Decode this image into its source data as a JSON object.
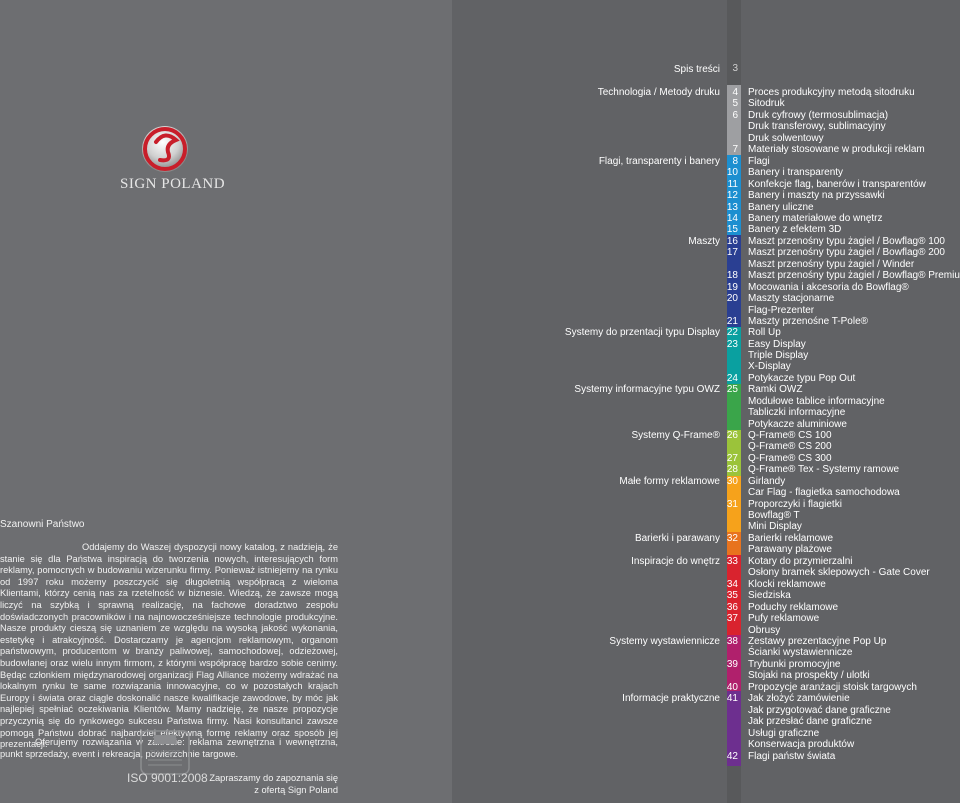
{
  "left": {
    "brand": "SIGN POLAND",
    "greeting": "Szanowni Państwo",
    "paragraph1": "Oddajemy do Waszej dyspozycji nowy katalog, z nadzieją, że stanie się dla Państwa inspiracją do tworzenia nowych, interesujących form reklamy, pomocnych w budowaniu wizerunku firmy. Ponieważ istniejemy na rynku od 1997 roku możemy poszczycić się długoletnią współpracą z wieloma Klientami, którzy cenią nas za rzetelność w biznesie. Wiedzą, że zawsze mogą liczyć na szybką i sprawną realizację, na fachowe doradztwo zespołu doświadczonych pracowników i na najnowocześniejsze technologie produkcyjne. Nasze produkty cieszą się uznaniem ze względu na wysoką jakość wykonania, estetykę i atrakcyjność. Dostarczamy je agencjom reklamowym, organom państwowym, producentom w branży paliwowej, samochodowej, odzieżowej, budowlanej oraz wielu innym firmom, z którymi współpracę bardzo sobie cenimy. Będąc członkiem międzynarodowej organizacji Flag Alliance możemy wdrażać na lokalnym rynku te same rozwiązania innowacyjne, co w pozostałych krajach Europy i świata oraz ciągle doskonalić nasze kwalifikacje zawodowe, by móc jak najlepiej spełniać oczekiwania Klientów. Mamy nadzieję, że nasze propozycje przyczynią się do rynkowego sukcesu Państwa firmy. Nasi konsultanci zawsze pomogą Państwu dobrać najbardziej efektywną formę reklamy oraz sposób jej prezentacji.",
    "paragraph2": "Oferujemy rozwiązania w zakresie: reklama zewnętrzna i wewnętrzna, punkt sprzedaży, event i rekreacja, powierzchnie targowe.",
    "closing1": "Zapraszamy do zapoznania się",
    "closing2": "z ofertą Sign Poland",
    "cert_label": "TÜV CERT",
    "iso": "ISO 9001:2008"
  },
  "toc": {
    "title": "Spis treści",
    "title_num": "3",
    "categories": [
      {
        "label": "Technologia / Metody druku",
        "color": "#9e9fa2"
      },
      {
        "label": "Flagi, transparenty i banery",
        "color": "#1c8fd0"
      },
      {
        "label": "Maszty",
        "color": "#2a3f92"
      },
      {
        "label": "Systemy do przentacji typu Display",
        "color": "#0aa0a0"
      },
      {
        "label": "Systemy informacyjne typu OWZ",
        "color": "#3aa54a"
      },
      {
        "label": "Systemy Q-Frame®",
        "color": "#9bc33a"
      },
      {
        "label": "Małe formy reklamowe",
        "color": "#f6a21b"
      },
      {
        "label": "Barierki i parawany",
        "color": "#e8731e"
      },
      {
        "label": "Inspiracje do wnętrz",
        "color": "#d9232e"
      },
      {
        "label": "Systemy wystawiennicze",
        "color": "#b0206c"
      },
      {
        "label": "Informacje praktyczne",
        "color": "#6d2f8f"
      }
    ],
    "numbers": [
      "4",
      "5",
      "6",
      "7",
      "8",
      "10",
      "11",
      "12",
      "13",
      "14",
      "15",
      "16",
      "17",
      "18",
      "19",
      "20",
      "21",
      "22",
      "23",
      "24",
      "25",
      "26",
      "27",
      "28",
      "30",
      "31",
      "32",
      "33",
      "34",
      "35",
      "36",
      "37",
      "38",
      "39",
      "40",
      "41",
      "42"
    ],
    "items": [
      "Proces produkcyjny metodą sitodruku",
      "Sitodruk",
      "Druk cyfrowy (termosublimacja)",
      "Druk transferowy, sublimacyjny",
      "Druk solwentowy",
      "Materiały stosowane w produkcji reklam",
      "Flagi",
      "Banery i transparenty",
      "Konfekcje flag, banerów i transparentów",
      "Banery i maszty na przyssawki",
      "Banery uliczne",
      "Banery materiałowe do wnętrz",
      "Banery z efektem 3D",
      "Maszt przenośny typu żagiel / Bowflag® 100",
      "Maszt przenośny typu żagiel / Bowflag® 200",
      "Maszt przenośny typu żagiel / Winder",
      "Maszt przenośny typu żagiel / Bowflag® Premium",
      "Mocowania i akcesoria do Bowflag®",
      "Maszty stacjonarne",
      "Flag-Prezenter",
      "Maszty przenośne T-Pole®",
      "Roll Up",
      "Easy Display",
      "Triple Display",
      "X-Display",
      "Potykacze typu Pop Out",
      "Ramki OWZ",
      "Modułowe tablice informacyjne",
      "Tabliczki informacyjne",
      "Potykacze aluminiowe",
      "Q-Frame® CS 100",
      "Q-Frame® CS 200",
      "Q-Frame® CS 300",
      "Q-Frame® Tex - Systemy ramowe",
      "Girlandy",
      "Car Flag - flagietka samochodowa",
      "Proporczyki i flagietki",
      "Bowflag® T",
      "Mini Display",
      "Barierki reklamowe",
      "Parawany plażowe",
      "Kotary do przymierzalni",
      "Osłony bramek sklepowych - Gate Cover",
      "Klocki reklamowe",
      "Siedziska",
      "Poduchy reklamowe",
      "Pufy reklamowe",
      "Obrusy",
      "Zestawy prezentacyjne Pop Up",
      "Ścianki wystawiennicze",
      "Trybunki promocyjne",
      "Stojaki na prospekty / ulotki",
      "Propozycje aranżacji stoisk targowych",
      "Jak złożyć zamówienie",
      "Jak przygotować dane graficzne",
      "Jak przesłać dane graficzne",
      "Usługi graficzne",
      "Konserwacja produktów",
      "Flagi państw świata"
    ]
  }
}
